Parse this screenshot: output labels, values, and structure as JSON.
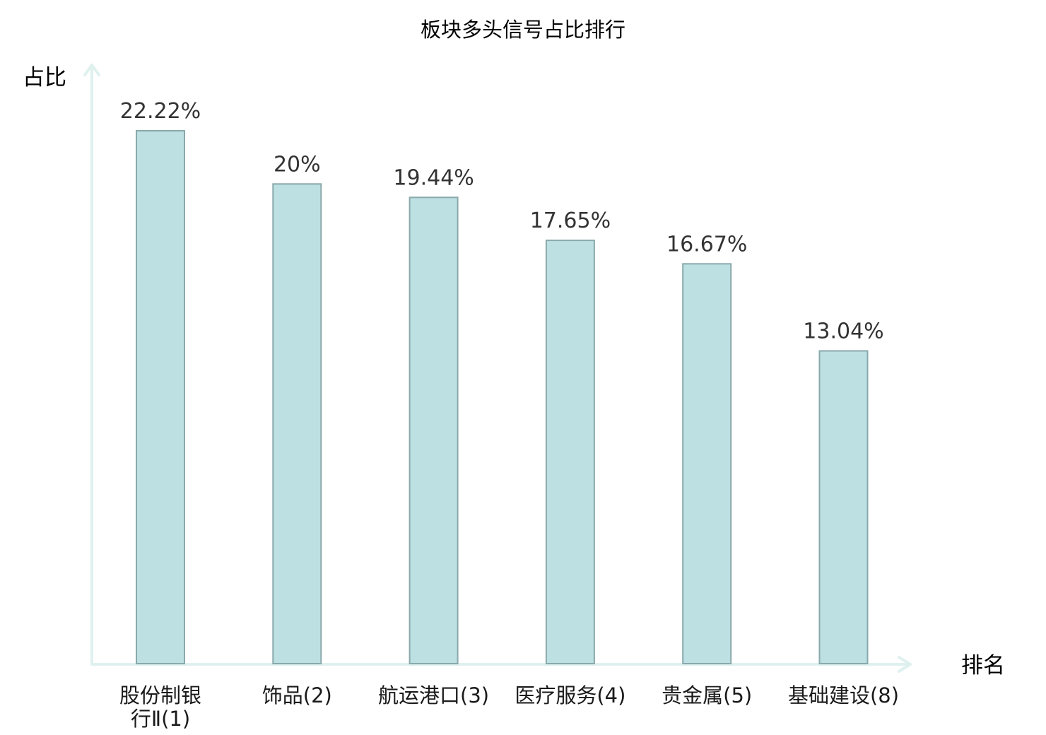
{
  "chart_data": {
    "type": "bar",
    "title": "板块多头信号占比排行",
    "ylabel": "占比",
    "xlabel": "排名",
    "categories": [
      {
        "lines": [
          "股份制银",
          "行Ⅱ(1)"
        ],
        "highlight": false
      },
      {
        "lines": [
          "饰品(2)"
        ],
        "highlight": false
      },
      {
        "lines": [
          "航运港口(3)"
        ],
        "highlight": false
      },
      {
        "lines": [
          "医疗服务(4)"
        ],
        "highlight": false
      },
      {
        "lines": [
          "贵金属(5)"
        ],
        "highlight": false
      },
      {
        "lines": [
          "基础建设(8)"
        ],
        "highlight": true
      }
    ],
    "values": [
      22.22,
      20,
      19.44,
      17.65,
      16.67,
      13.04
    ],
    "value_labels": [
      "22.22%",
      "20%",
      "19.44%",
      "17.65%",
      "16.67%",
      "13.04%"
    ],
    "ylim": [
      0,
      25
    ],
    "grid": false,
    "colors": {
      "bar_fill": "#bde0e3",
      "bar_stroke": "#8aa9ac",
      "axis": "#dff1ef",
      "highlight_text": "#e02020",
      "text": "#1a1a1a",
      "value_text": "#333333"
    }
  }
}
